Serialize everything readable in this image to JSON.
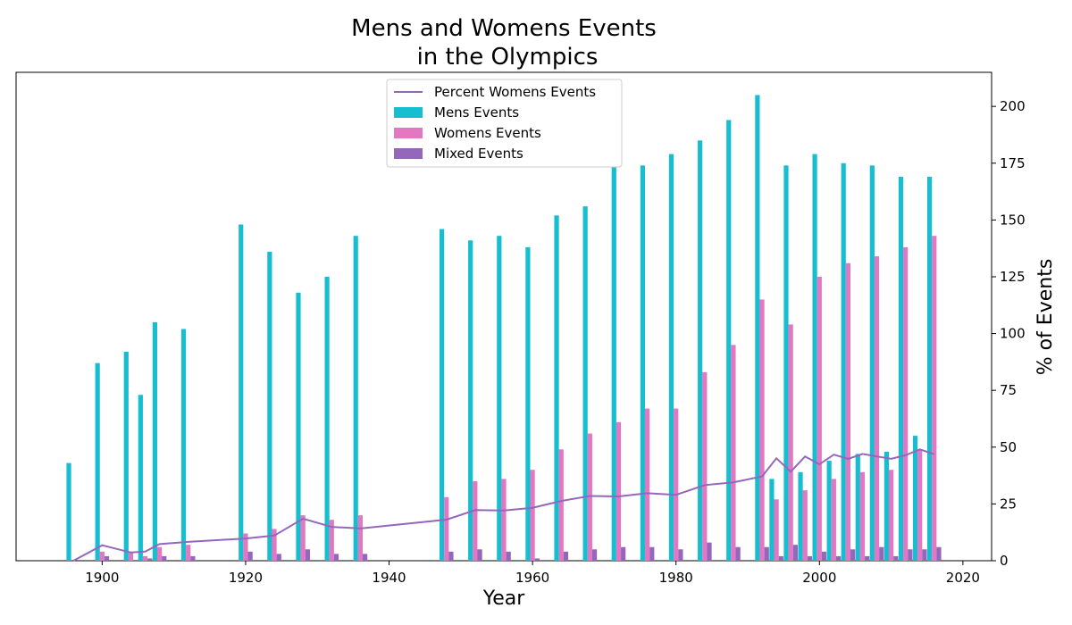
{
  "chart_data": {
    "type": "bar",
    "title_line1": "Mens and Womens Events",
    "title_line2": "in the Olympics",
    "xlabel": "Year",
    "ylabel": "% of Events",
    "xlim": [
      1888,
      2024
    ],
    "ylim": [
      0,
      215
    ],
    "xticks": [
      1900,
      1920,
      1940,
      1960,
      1980,
      2000,
      2020
    ],
    "yticks": [
      0,
      25,
      50,
      75,
      100,
      125,
      150,
      175,
      200
    ],
    "y_axis_side": "right",
    "grid": false,
    "legend_position": "top-center",
    "years": [
      1896,
      1900,
      1904,
      1906,
      1908,
      1912,
      1920,
      1924,
      1928,
      1932,
      1936,
      1948,
      1952,
      1956,
      1960,
      1964,
      1968,
      1972,
      1976,
      1980,
      1984,
      1988,
      1992,
      1994,
      1996,
      1998,
      2000,
      2002,
      2004,
      2006,
      2008,
      2010,
      2012,
      2014,
      2016
    ],
    "series": [
      {
        "name": "Mens Events",
        "type": "bar",
        "color": "#17becf",
        "values": [
          43,
          87,
          92,
          73,
          105,
          102,
          148,
          136,
          118,
          125,
          143,
          146,
          141,
          143,
          138,
          152,
          156,
          175,
          174,
          179,
          185,
          194,
          205,
          36,
          174,
          39,
          179,
          44,
          175,
          47,
          174,
          48,
          169,
          55,
          169
        ]
      },
      {
        "name": "Womens Events",
        "type": "bar",
        "color": "#e377c2",
        "values": [
          0,
          4,
          4,
          2,
          6,
          7,
          12,
          14,
          20,
          18,
          20,
          28,
          35,
          36,
          40,
          49,
          56,
          61,
          67,
          67,
          83,
          95,
          115,
          27,
          104,
          31,
          125,
          36,
          131,
          39,
          134,
          40,
          138,
          49,
          143
        ]
      },
      {
        "name": "Mixed Events",
        "type": "bar",
        "color": "#9467bd",
        "values": [
          0,
          2,
          0,
          1,
          2,
          2,
          4,
          3,
          5,
          3,
          3,
          4,
          5,
          4,
          1,
          4,
          5,
          6,
          6,
          5,
          8,
          6,
          6,
          2,
          7,
          2,
          4,
          2,
          5,
          2,
          6,
          2,
          5,
          5,
          6
        ]
      },
      {
        "name": "Percent Womens Events",
        "type": "line",
        "color": "#9467bd",
        "values": [
          0,
          6.8,
          3.6,
          4,
          7.3,
          8.3,
          9.8,
          11.1,
          18.5,
          14.9,
          14.2,
          18.1,
          22.3,
          22.1,
          23.3,
          26.3,
          28.5,
          28.3,
          29.7,
          29,
          33.3,
          34.5,
          37.1,
          45.1,
          39.2,
          45.9,
          42.5,
          46.7,
          44.8,
          47,
          45.9,
          44.9,
          46.4,
          49,
          46.9
        ]
      }
    ]
  }
}
